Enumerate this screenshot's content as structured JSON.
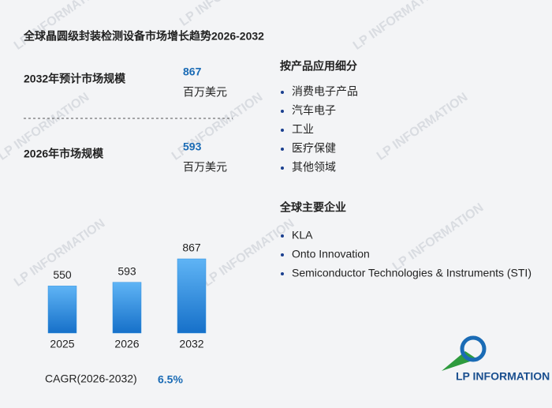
{
  "title": "全球晶圆级封装检测设备市场增长趋势2026-2032",
  "market_2032": {
    "label": "2032年预计市场规模",
    "value": 867,
    "unit": "百万美元"
  },
  "market_2026": {
    "label": "2026年市场规模",
    "value": 593,
    "unit": "百万美元"
  },
  "cagr": {
    "label": "CAGR(2026-2032)",
    "value": "6.5%"
  },
  "segments": {
    "title": "按产品应用细分",
    "items": [
      "消费电子产品",
      "汽车电子",
      "工业",
      "医疗保健",
      "其他领域"
    ]
  },
  "companies": {
    "title": "全球主要企业",
    "items": [
      "KLA",
      "Onto Innovation",
      "Semiconductor Technologies & Instruments (STI)"
    ]
  },
  "logo_text": "LP INFORMATION",
  "chart_data": {
    "type": "bar",
    "categories": [
      "2025",
      "2026",
      "2032"
    ],
    "values": [
      550,
      593,
      867
    ],
    "color": "#2f8fe0"
  }
}
